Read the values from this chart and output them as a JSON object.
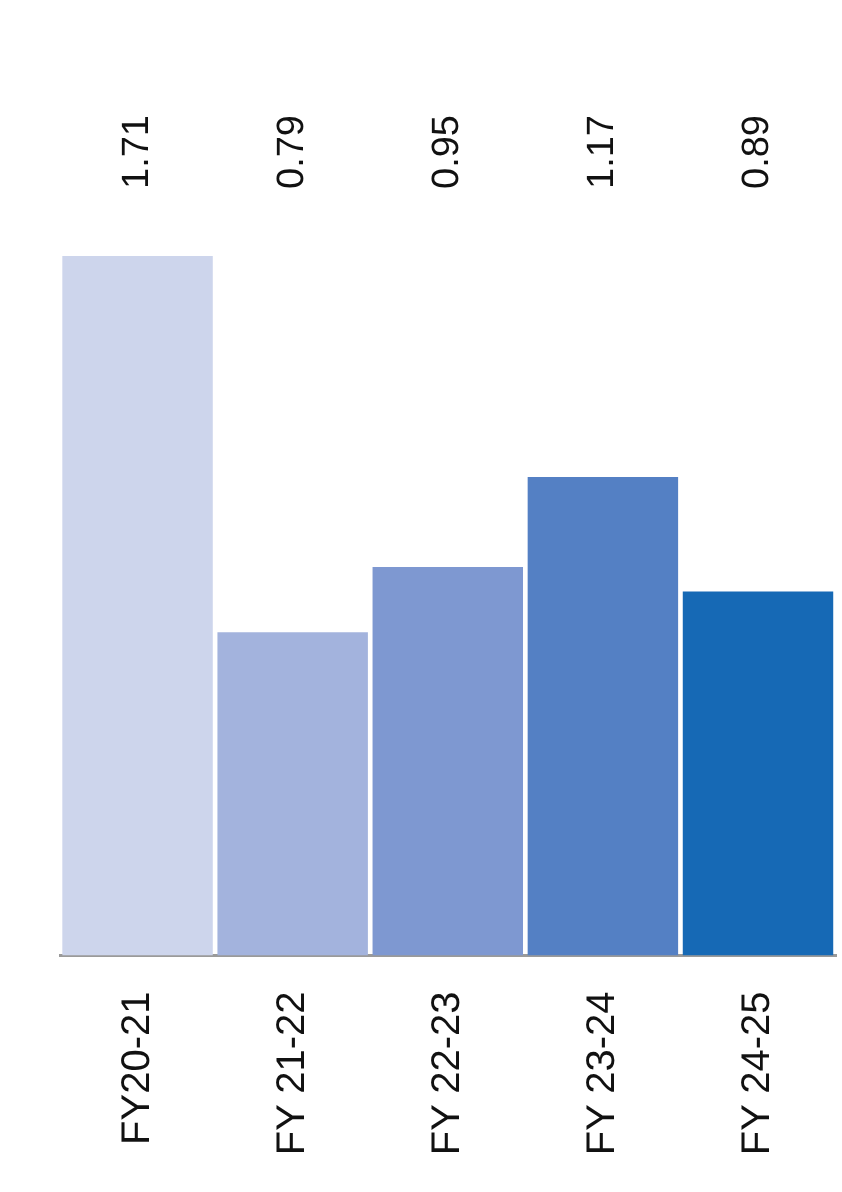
{
  "chart_data": {
    "type": "bar",
    "categories": [
      "FY20-21",
      "FY 21-22",
      "FY 22-23",
      "FY 23-24",
      "FY 24-25"
    ],
    "values": [
      1.71,
      0.79,
      0.95,
      1.17,
      0.89
    ],
    "colors": [
      "#cdd5ec",
      "#a3b3dd",
      "#7e98d1",
      "#5480c4",
      "#1669b5"
    ],
    "data_labels": true,
    "grid": false,
    "legend": false
  }
}
